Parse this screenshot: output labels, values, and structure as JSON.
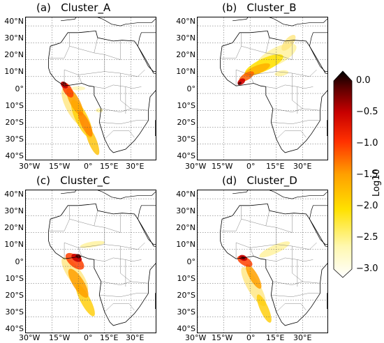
{
  "panels": [
    {
      "id": "a",
      "title": "(a)   Cluster_A",
      "plume": "southern"
    },
    {
      "id": "b",
      "title": "(b)   Cluster_B",
      "plume": "northern"
    },
    {
      "id": "c",
      "title": "(c)   Cluster_C",
      "plume": "coastal"
    },
    {
      "id": "d",
      "title": "(d)   Cluster_D",
      "plume": "mixed"
    }
  ],
  "lat_ticks": [
    "40°N",
    "30°N",
    "20°N",
    "10°N",
    "0°",
    "10°S",
    "20°S",
    "30°S",
    "40°S"
  ],
  "lon_ticks": [
    "30°W",
    "15°W",
    "0°",
    "15°E",
    "30°E"
  ],
  "lon_ticks_right": [
    "30°W",
    "15°W",
    "0°",
    "15°E",
    "30°E"
  ],
  "colorbar": {
    "label": "Log10",
    "ticks": [
      "0.0",
      "−0.5",
      "−1.0",
      "−1.5",
      "−2.0",
      "−2.5",
      "−3.0"
    ],
    "range": [
      -3.0,
      0.0
    ],
    "colors": [
      "#ffffff",
      "#fff8b0",
      "#ffe100",
      "#ffa000",
      "#ff3000",
      "#c80000",
      "#5a0000",
      "#000000"
    ]
  }
}
